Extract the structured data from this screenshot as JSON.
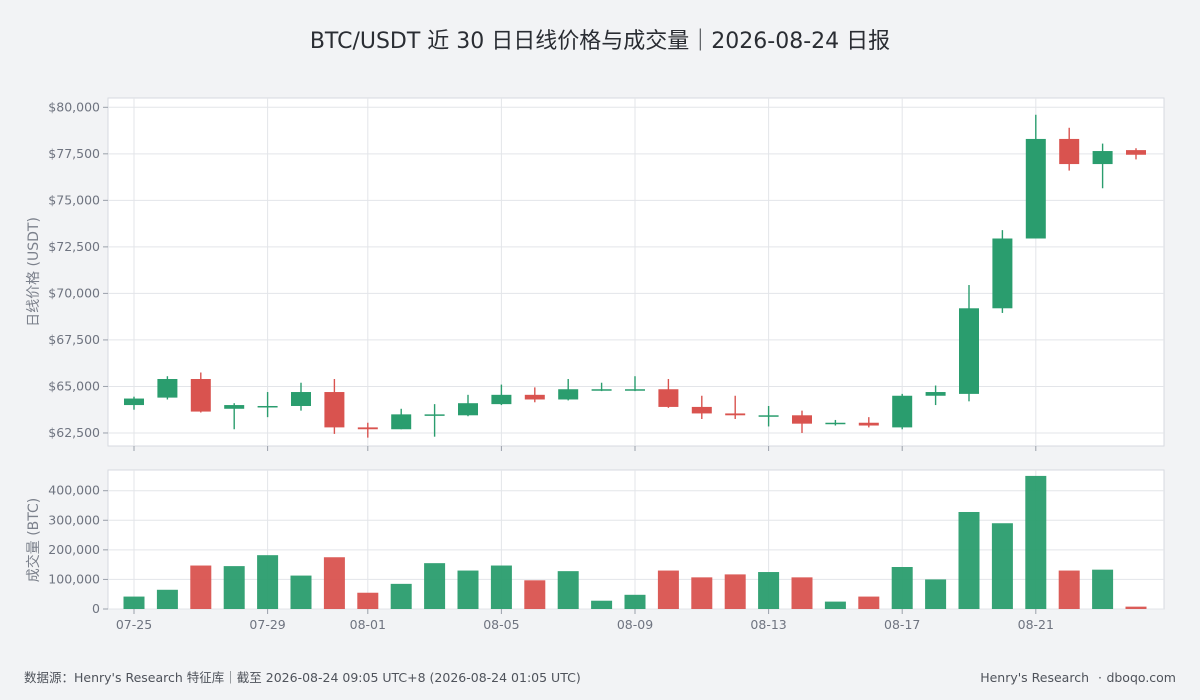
{
  "chart_data": [
    {
      "type": "candlestick",
      "title": "BTC/USDT 近 30 日日线价格与成交量｜2026-08-24 日报",
      "ylabel": "日线价格 (USDT)",
      "ylim": [
        61800,
        80500
      ],
      "yticks": [
        62500,
        65000,
        67500,
        70000,
        72500,
        75000,
        77500,
        80000
      ],
      "ytick_labels": [
        "$62,500",
        "$65,000",
        "$67,500",
        "$70,000",
        "$72,500",
        "$75,000",
        "$77,500",
        "$80,000"
      ],
      "dates": [
        "07-25",
        "07-26",
        "07-27",
        "07-28",
        "07-29",
        "07-30",
        "07-31",
        "08-01",
        "08-02",
        "08-03",
        "08-04",
        "08-05",
        "08-06",
        "08-07",
        "08-08",
        "08-09",
        "08-10",
        "08-11",
        "08-12",
        "08-13",
        "08-14",
        "08-15",
        "08-16",
        "08-17",
        "08-18",
        "08-19",
        "08-20",
        "08-21",
        "08-22",
        "08-23",
        "08-24"
      ],
      "x_tick_labels": [
        "07-25",
        "07-29",
        "08-01",
        "08-05",
        "08-09",
        "08-13",
        "08-17",
        "08-21"
      ],
      "open": [
        64000,
        64400,
        65400,
        63800,
        63950,
        63950,
        64700,
        62800,
        62700,
        63500,
        63450,
        64050,
        64550,
        64300,
        64850,
        64850,
        64850,
        63900,
        63550,
        63450,
        63450,
        63000,
        63050,
        62800,
        64500,
        64600,
        69200,
        72950,
        78300,
        76950,
        77700
      ],
      "high": [
        64450,
        65550,
        65750,
        64100,
        64700,
        65200,
        65400,
        63050,
        63800,
        64050,
        64550,
        65100,
        64950,
        65400,
        65200,
        65550,
        65400,
        64500,
        64500,
        63950,
        63700,
        63200,
        63350,
        64600,
        65050,
        70450,
        73400,
        79600,
        78900,
        78050,
        77800
      ],
      "low": [
        63750,
        64300,
        63600,
        62700,
        63350,
        63700,
        62450,
        62250,
        62700,
        62300,
        63400,
        64000,
        64150,
        64250,
        64750,
        64750,
        63850,
        63250,
        63250,
        62850,
        62500,
        62900,
        62800,
        62700,
        64000,
        64200,
        68950,
        72950,
        76600,
        75650,
        77200
      ],
      "close": [
        64350,
        65400,
        63650,
        64000,
        63950,
        64700,
        62800,
        62700,
        63500,
        63500,
        64100,
        64550,
        64300,
        64850,
        64850,
        64850,
        63900,
        63550,
        63450,
        63450,
        63000,
        63050,
        62900,
        64500,
        64700,
        69200,
        72950,
        78300,
        76950,
        77650,
        77450
      ],
      "up_color": "#2a9d6e",
      "down_color": "#d9534f",
      "grid": true
    },
    {
      "type": "bar",
      "ylabel": "成交量 (BTC)",
      "ylim": [
        0,
        470000
      ],
      "yticks": [
        0,
        100000,
        200000,
        300000,
        400000
      ],
      "ytick_labels": [
        "0",
        "100,000",
        "200,000",
        "300,000",
        "400,000"
      ],
      "x_tick_labels": [
        "07-25",
        "07-29",
        "08-01",
        "08-05",
        "08-09",
        "08-13",
        "08-17",
        "08-21"
      ],
      "values": [
        42000,
        65000,
        147000,
        145000,
        182000,
        113000,
        175000,
        55000,
        85000,
        155000,
        130000,
        147000,
        97000,
        128000,
        28000,
        48000,
        130000,
        107000,
        117000,
        125000,
        107000,
        25000,
        42000,
        142000,
        100000,
        328000,
        290000,
        450000,
        130000,
        133000,
        8000
      ],
      "grid": true
    }
  ],
  "footer": {
    "source": "数据源：Henry's Research 特征库｜截至 2026-08-24 09:05 UTC+8 (2026-08-24 01:05 UTC)",
    "brand": "Henry's Research",
    "separator": "·",
    "site": "dboqo.com"
  }
}
